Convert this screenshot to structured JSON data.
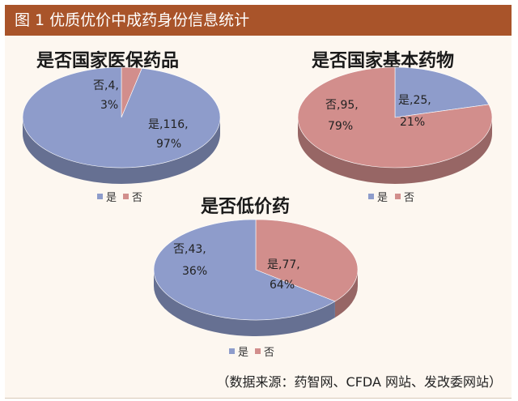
{
  "header": {
    "title": "图 1  优质优价中成药身份信息统计"
  },
  "source_note": "（数据来源：药智网、CFDA 网站、发改委网站）",
  "colors": {
    "yes": "#8e9ccb",
    "no": "#d28e8c",
    "header_bg": "#a9542a",
    "frame_bg": "#fdf7f0"
  },
  "chart_data": [
    {
      "type": "pie",
      "title": "是否国家医保药品",
      "slices": [
        {
          "name": "是",
          "value": 116,
          "percent": "97%",
          "label_line1": "是,116,",
          "label_line2": "97%"
        },
        {
          "name": "否",
          "value": 4,
          "percent": "3%",
          "label_line1": "否,4,",
          "label_line2": "3%"
        }
      ],
      "legend": [
        "是",
        "否"
      ]
    },
    {
      "type": "pie",
      "title": "是否国家基本药物",
      "slices": [
        {
          "name": "是",
          "value": 25,
          "percent": "21%",
          "label_line1": "是,25,",
          "label_line2": "21%"
        },
        {
          "name": "否",
          "value": 95,
          "percent": "79%",
          "label_line1": "否,95,",
          "label_line2": "79%"
        }
      ],
      "legend": [
        "是",
        "否"
      ]
    },
    {
      "type": "pie",
      "title": "是否低价药",
      "slices": [
        {
          "name": "是",
          "value": 77,
          "percent": "64%",
          "label_line1": "是,77,",
          "label_line2": "64%"
        },
        {
          "name": "否",
          "value": 43,
          "percent": "36%",
          "label_line1": "否,43,",
          "label_line2": "36%"
        }
      ],
      "legend": [
        "是",
        "否"
      ]
    }
  ]
}
